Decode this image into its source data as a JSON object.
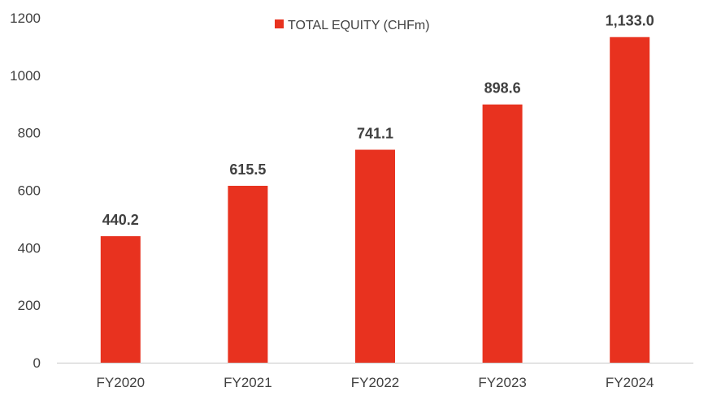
{
  "chart_data": {
    "type": "bar",
    "title": "",
    "xlabel": "",
    "ylabel": "",
    "categories": [
      "FY2020",
      "FY2021",
      "FY2022",
      "FY2023",
      "FY2024"
    ],
    "series": [
      {
        "name": "TOTAL EQUITY (CHFm)",
        "values": [
          440.2,
          615.5,
          741.1,
          898.6,
          1133.0
        ],
        "labels": [
          "440.2",
          "615.5",
          "741.1",
          "898.6",
          "1,133.0"
        ],
        "color": "#E8321F"
      }
    ],
    "ylim": [
      0,
      1200
    ],
    "yticks": [
      0,
      200,
      400,
      600,
      800,
      1000,
      1200
    ],
    "grid": false,
    "legend_position": "top-center"
  }
}
